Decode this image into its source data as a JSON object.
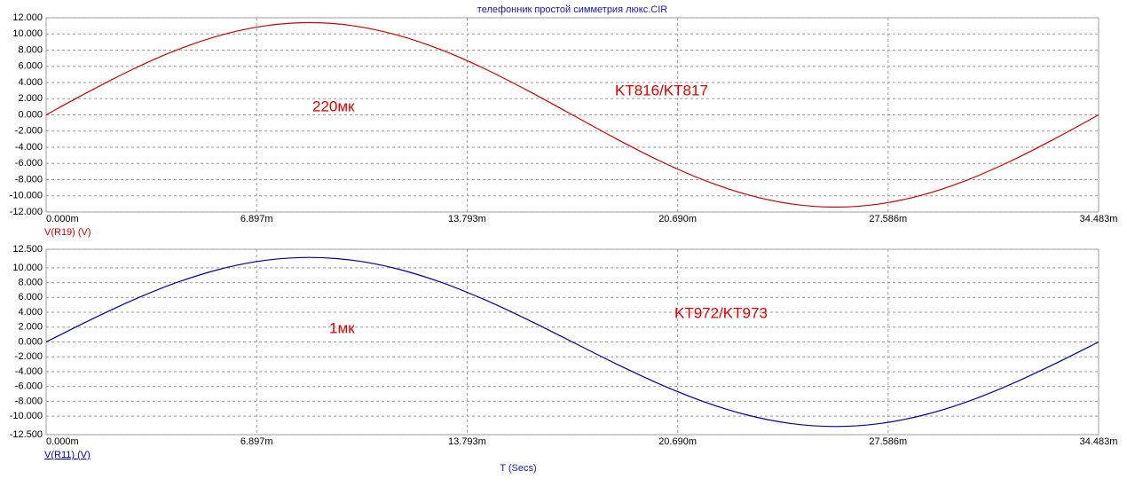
{
  "chart_data": [
    {
      "type": "line",
      "title": "телефонник  простой симметрия люкс.CIR",
      "x": [
        0,
        1.437,
        2.874,
        4.31,
        5.747,
        7.184,
        8.621,
        10.058,
        11.494,
        12.931,
        14.368,
        15.805,
        17.242,
        18.678,
        20.115,
        21.552,
        22.989,
        24.426,
        25.862,
        27.299,
        28.736,
        30.173,
        31.609,
        33.046,
        34.483
      ],
      "series": [
        {
          "name": "V(R19) (V)",
          "color": "#cc0000",
          "values": [
            0,
            2.95,
            5.7,
            8.06,
            9.87,
            11.01,
            11.4,
            11.01,
            9.87,
            8.06,
            5.7,
            2.95,
            0,
            -2.95,
            -5.7,
            -8.06,
            -9.87,
            -11.01,
            -11.4,
            -11.01,
            -9.87,
            -8.06,
            -5.7,
            -2.95,
            0
          ]
        }
      ],
      "xlim": [
        0,
        34.483
      ],
      "xticks": [
        {
          "value": 0,
          "label": "0.000m"
        },
        {
          "value": 6.897,
          "label": "6.897m"
        },
        {
          "value": 13.793,
          "label": "13.793m"
        },
        {
          "value": 20.69,
          "label": "20.690m"
        },
        {
          "value": 27.586,
          "label": "27.586m"
        },
        {
          "value": 34.483,
          "label": "34.483m"
        }
      ],
      "ylim": [
        -12,
        12
      ],
      "yticks": [
        {
          "value": 12,
          "label": "12.000"
        },
        {
          "value": 10,
          "label": "10.000"
        },
        {
          "value": 8,
          "label": "8.000"
        },
        {
          "value": 6,
          "label": "6.000"
        },
        {
          "value": 4,
          "label": "4.000"
        },
        {
          "value": 2,
          "label": "2.000"
        },
        {
          "value": 0,
          "label": "0.000"
        },
        {
          "value": -2,
          "label": "-2.000"
        },
        {
          "value": -4,
          "label": "-4.000"
        },
        {
          "value": -6,
          "label": "-6.000"
        },
        {
          "value": -8,
          "label": "-8.000"
        },
        {
          "value": -10,
          "label": "-10.000"
        },
        {
          "value": -12,
          "label": "-12.000"
        }
      ],
      "grid": true,
      "annotation_color": "#e00000",
      "annotations": [
        "220мк",
        "KT816/KT817"
      ]
    },
    {
      "type": "line",
      "xlabel": "T (Secs)",
      "x": [
        0,
        1.437,
        2.874,
        4.31,
        5.747,
        7.184,
        8.621,
        10.058,
        11.494,
        12.931,
        14.368,
        15.805,
        17.242,
        18.678,
        20.115,
        21.552,
        22.989,
        24.426,
        25.862,
        27.299,
        28.736,
        30.173,
        31.609,
        33.046,
        34.483
      ],
      "series": [
        {
          "name": "V(R11) (V)",
          "color": "#0000a0",
          "values": [
            0,
            2.95,
            5.7,
            8.06,
            9.87,
            11.01,
            11.4,
            11.01,
            9.87,
            8.06,
            5.7,
            2.95,
            0,
            -2.95,
            -5.7,
            -8.06,
            -9.87,
            -11.01,
            -11.4,
            -11.01,
            -9.87,
            -8.06,
            -5.7,
            -2.95,
            0
          ]
        }
      ],
      "xlim": [
        0,
        34.483
      ],
      "xticks": [
        {
          "value": 0,
          "label": "0.000m"
        },
        {
          "value": 6.897,
          "label": "6.897m"
        },
        {
          "value": 13.793,
          "label": "13.793m"
        },
        {
          "value": 20.69,
          "label": "20.690m"
        },
        {
          "value": 27.586,
          "label": "27.586m"
        },
        {
          "value": 34.483,
          "label": "34.483m"
        }
      ],
      "ylim": [
        -12.5,
        12.5
      ],
      "yticks": [
        {
          "value": 12.5,
          "label": "12.500"
        },
        {
          "value": 10,
          "label": "10.000"
        },
        {
          "value": 8,
          "label": "8.000"
        },
        {
          "value": 6,
          "label": "6.000"
        },
        {
          "value": 4,
          "label": "4.000"
        },
        {
          "value": 2,
          "label": "2.000"
        },
        {
          "value": 0,
          "label": "0.000"
        },
        {
          "value": -2,
          "label": "-2.000"
        },
        {
          "value": -4,
          "label": "-4.000"
        },
        {
          "value": -6,
          "label": "-6.000"
        },
        {
          "value": -8,
          "label": "-8.000"
        },
        {
          "value": -10,
          "label": "-10.000"
        },
        {
          "value": -12.5,
          "label": "-12.500"
        }
      ],
      "grid": true,
      "annotation_color": "#e00000",
      "annotations": [
        "1мк",
        "KT972/KT973"
      ]
    }
  ]
}
